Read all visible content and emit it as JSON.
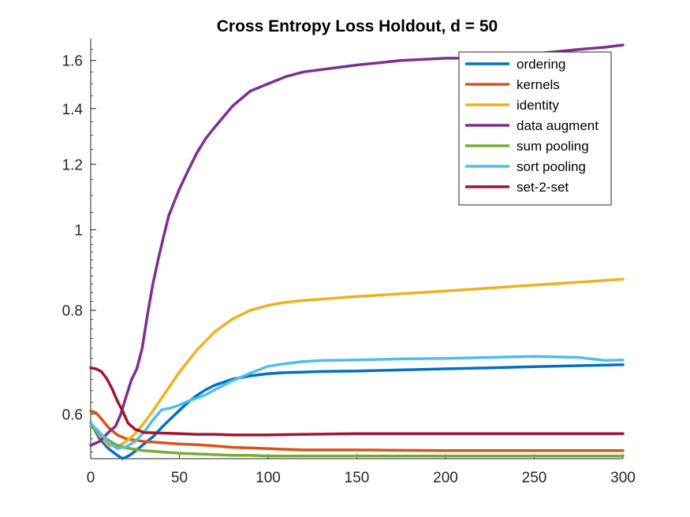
{
  "chart_data": {
    "type": "line",
    "title": "Cross Entropy Loss Holdout, d = 50",
    "xlabel": "",
    "ylabel": "",
    "xlim": [
      0,
      300
    ],
    "ylim": [
      0.53,
      1.7
    ],
    "y_scale": "log",
    "x_ticks": [
      0,
      50,
      100,
      150,
      200,
      250,
      300
    ],
    "x_tick_labels": [
      "0",
      "50",
      "100",
      "150",
      "200",
      "250",
      "300"
    ],
    "y_ticks": [
      0.6,
      0.8,
      1.0,
      1.2,
      1.4,
      1.6
    ],
    "y_tick_labels": [
      "0.6",
      "0.8",
      "1",
      "1.2",
      "1.4",
      "1.6"
    ],
    "legend_position": "top-right",
    "series": [
      {
        "name": "ordering",
        "color": "#0072BD",
        "x": [
          0,
          5,
          10,
          15,
          18,
          22,
          26,
          30,
          35,
          40,
          45,
          50,
          55,
          60,
          65,
          70,
          80,
          90,
          100,
          110,
          120,
          130,
          150,
          175,
          200,
          225,
          250,
          275,
          300
        ],
        "y": [
          0.586,
          0.56,
          0.545,
          0.535,
          0.53,
          0.535,
          0.543,
          0.552,
          0.563,
          0.578,
          0.592,
          0.606,
          0.62,
          0.632,
          0.642,
          0.65,
          0.661,
          0.667,
          0.671,
          0.673,
          0.674,
          0.675,
          0.676,
          0.678,
          0.68,
          0.682,
          0.684,
          0.686,
          0.688
        ]
      },
      {
        "name": "kernels",
        "color": "#D95319",
        "x": [
          0,
          3,
          6,
          10,
          15,
          20,
          30,
          40,
          50,
          60,
          70,
          80,
          90,
          100,
          110,
          120,
          150,
          200,
          250,
          300
        ],
        "y": [
          0.605,
          0.602,
          0.592,
          0.578,
          0.566,
          0.56,
          0.556,
          0.554,
          0.552,
          0.551,
          0.549,
          0.547,
          0.546,
          0.545,
          0.544,
          0.543,
          0.543,
          0.542,
          0.542,
          0.542
        ]
      },
      {
        "name": "identity",
        "color": "#EDB120",
        "x": [
          0,
          5,
          10,
          15,
          20,
          25,
          30,
          35,
          40,
          50,
          60,
          70,
          80,
          90,
          100,
          110,
          120,
          150,
          200,
          250,
          300
        ],
        "y": [
          0.585,
          0.565,
          0.55,
          0.548,
          0.556,
          0.568,
          0.585,
          0.605,
          0.627,
          0.674,
          0.717,
          0.754,
          0.781,
          0.8,
          0.811,
          0.818,
          0.822,
          0.831,
          0.844,
          0.858,
          0.872
        ]
      },
      {
        "name": "data augment",
        "color": "#7E2F8E",
        "x": [
          0,
          5,
          10,
          14,
          17,
          20,
          23,
          26,
          29,
          32,
          35,
          38,
          41,
          44,
          47,
          50,
          55,
          60,
          65,
          70,
          75,
          80,
          85,
          90,
          100,
          110,
          120,
          130,
          150,
          175,
          200,
          225,
          250,
          275,
          290,
          300
        ],
        "y": [
          0.55,
          0.556,
          0.57,
          0.58,
          0.6,
          0.63,
          0.66,
          0.68,
          0.72,
          0.79,
          0.86,
          0.92,
          0.98,
          1.04,
          1.08,
          1.12,
          1.18,
          1.24,
          1.29,
          1.33,
          1.37,
          1.41,
          1.44,
          1.47,
          1.5,
          1.53,
          1.55,
          1.56,
          1.58,
          1.6,
          1.61,
          1.61,
          1.63,
          1.65,
          1.66,
          1.67
        ]
      },
      {
        "name": "sum pooling",
        "color": "#77AC30",
        "x": [
          0,
          5,
          10,
          15,
          20,
          30,
          40,
          50,
          60,
          70,
          80,
          90,
          100,
          120,
          150,
          200,
          250,
          300
        ],
        "y": [
          0.58,
          0.568,
          0.558,
          0.55,
          0.546,
          0.542,
          0.54,
          0.538,
          0.537,
          0.536,
          0.535,
          0.535,
          0.534,
          0.534,
          0.534,
          0.534,
          0.534,
          0.534
        ]
      },
      {
        "name": "sort pooling",
        "color": "#4DBEEE",
        "x": [
          0,
          5,
          10,
          15,
          20,
          25,
          30,
          35,
          40,
          45,
          50,
          55,
          60,
          65,
          70,
          75,
          80,
          90,
          100,
          110,
          120,
          130,
          150,
          175,
          200,
          225,
          250,
          275,
          290,
          300
        ],
        "y": [
          0.585,
          0.57,
          0.555,
          0.545,
          0.548,
          0.556,
          0.57,
          0.59,
          0.607,
          0.61,
          0.615,
          0.622,
          0.627,
          0.633,
          0.642,
          0.65,
          0.658,
          0.672,
          0.685,
          0.69,
          0.694,
          0.696,
          0.697,
          0.699,
          0.7,
          0.702,
          0.704,
          0.702,
          0.696,
          0.697
        ]
      },
      {
        "name": "set-2-set",
        "color": "#A2142F",
        "x": [
          0,
          3,
          6,
          9,
          12,
          15,
          18,
          21,
          25,
          30,
          40,
          50,
          60,
          70,
          80,
          90,
          100,
          120,
          150,
          200,
          250,
          300
        ],
        "y": [
          0.682,
          0.68,
          0.675,
          0.662,
          0.644,
          0.622,
          0.605,
          0.585,
          0.575,
          0.57,
          0.569,
          0.568,
          0.567,
          0.567,
          0.566,
          0.566,
          0.566,
          0.567,
          0.568,
          0.568,
          0.568,
          0.568
        ]
      }
    ]
  }
}
